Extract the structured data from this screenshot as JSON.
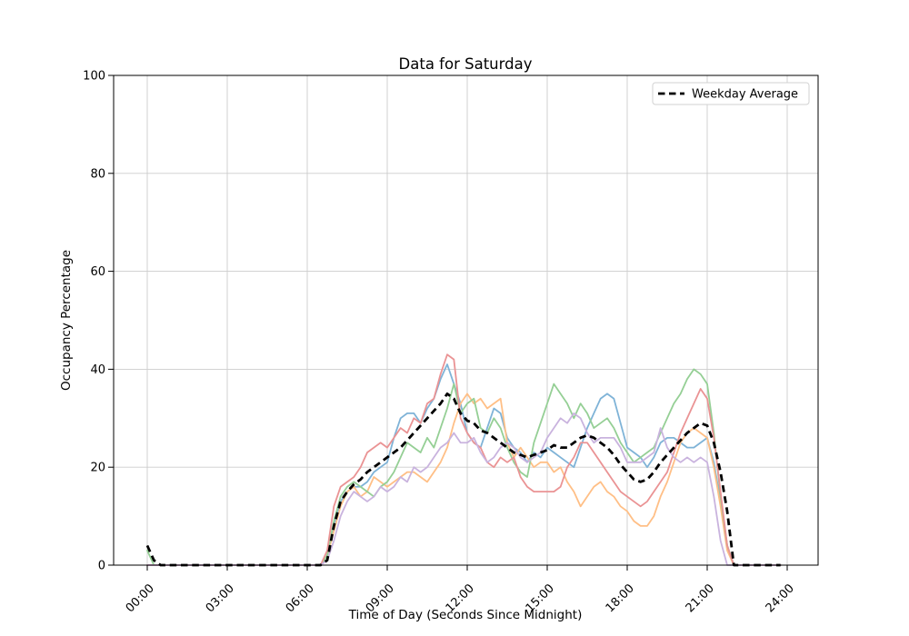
{
  "figure": {
    "background": "#ffffff"
  },
  "chart_data": {
    "type": "line",
    "title": "Data for Saturday",
    "xlabel": "Time of Day (Seconds Since Midnight)",
    "ylabel": "Occupancy Percentage",
    "ylim": [
      0,
      100
    ],
    "xlim_hours": [
      0,
      24
    ],
    "grid": true,
    "legend": {
      "position": "upper right",
      "entries": [
        "Weekday Average"
      ]
    },
    "x_ticks": {
      "hours": [
        0,
        3,
        6,
        9,
        12,
        15,
        18,
        21,
        24
      ],
      "labels": [
        "00:00",
        "03:00",
        "06:00",
        "09:00",
        "12:00",
        "15:00",
        "18:00",
        "21:00",
        "24:00"
      ],
      "rotation_deg": 45
    },
    "y_ticks": [
      0,
      20,
      40,
      60,
      80,
      100
    ],
    "x_start_hour": 0,
    "x_step_hours": 0.25,
    "series": [
      {
        "name": "series-1",
        "color": "#7fb3d7",
        "values": [
          0,
          0,
          0,
          0,
          0,
          0,
          0,
          0,
          0,
          0,
          0,
          0,
          0,
          0,
          0,
          0,
          0,
          0,
          0,
          0,
          0,
          0,
          0,
          0,
          0,
          0,
          0,
          2,
          8,
          13,
          15,
          16,
          16,
          17,
          19,
          20,
          21,
          26,
          30,
          31,
          31,
          29,
          32,
          34,
          38,
          41,
          37,
          33,
          27,
          25,
          24,
          28,
          32,
          31,
          26,
          24,
          23,
          21,
          23,
          22,
          24,
          23,
          22,
          21,
          20,
          24,
          28,
          31,
          34,
          35,
          34,
          29,
          24,
          23,
          22,
          20,
          22,
          25,
          26,
          26,
          25,
          24,
          24,
          25,
          26,
          21,
          13,
          4,
          0,
          0,
          0,
          0,
          0,
          0,
          0,
          0
        ]
      },
      {
        "name": "series-2",
        "color": "#ffbf86",
        "values": [
          0,
          0,
          0,
          0,
          0,
          0,
          0,
          0,
          0,
          0,
          0,
          0,
          0,
          0,
          0,
          0,
          0,
          0,
          0,
          0,
          0,
          0,
          0,
          0,
          0,
          0,
          0,
          2,
          7,
          12,
          15,
          16,
          14,
          15,
          18,
          17,
          16,
          17,
          18,
          19,
          19,
          18,
          17,
          19,
          21,
          24,
          29,
          33,
          35,
          33,
          34,
          32,
          33,
          34,
          25,
          22,
          24,
          22,
          20,
          21,
          21,
          19,
          20,
          17,
          15,
          12,
          14,
          16,
          17,
          15,
          14,
          12,
          11,
          9,
          8,
          8,
          10,
          14,
          17,
          21,
          25,
          27,
          28,
          27,
          26,
          20,
          12,
          3,
          0,
          0,
          0,
          0,
          0,
          0,
          0,
          0
        ]
      },
      {
        "name": "series-3",
        "color": "#95cf95",
        "values": [
          3,
          0,
          0,
          0,
          0,
          0,
          0,
          0,
          0,
          0,
          0,
          0,
          0,
          0,
          0,
          0,
          0,
          0,
          0,
          0,
          0,
          0,
          0,
          0,
          0,
          0,
          0,
          2,
          9,
          14,
          16,
          17,
          16,
          15,
          14,
          16,
          17,
          19,
          22,
          25,
          24,
          23,
          26,
          24,
          28,
          32,
          37,
          31,
          33,
          34,
          28,
          27,
          30,
          28,
          24,
          21,
          19,
          18,
          25,
          29,
          33,
          37,
          35,
          33,
          30,
          33,
          31,
          28,
          29,
          30,
          28,
          25,
          23,
          21,
          22,
          23,
          24,
          27,
          30,
          33,
          35,
          38,
          40,
          39,
          37,
          27,
          14,
          4,
          0,
          0,
          0,
          0,
          0,
          0,
          0,
          0
        ]
      },
      {
        "name": "series-4",
        "color": "#ea9394",
        "values": [
          0,
          0,
          0,
          0,
          0,
          0,
          0,
          0,
          0,
          0,
          0,
          0,
          0,
          0,
          0,
          0,
          0,
          0,
          0,
          0,
          0,
          0,
          0,
          0,
          0,
          0,
          0,
          3,
          12,
          16,
          17,
          18,
          20,
          23,
          24,
          25,
          24,
          26,
          28,
          27,
          30,
          29,
          33,
          34,
          39,
          43,
          42,
          30,
          27,
          25,
          24,
          21,
          20,
          22,
          21,
          22,
          18,
          16,
          15,
          15,
          15,
          15,
          16,
          20,
          22,
          25,
          25,
          23,
          21,
          19,
          17,
          15,
          14,
          13,
          12,
          13,
          15,
          17,
          19,
          23,
          27,
          30,
          33,
          36,
          34,
          26,
          15,
          4,
          0,
          0,
          0,
          0,
          0,
          0,
          0,
          0
        ]
      },
      {
        "name": "series-5",
        "color": "#c9b3de",
        "values": [
          0,
          0,
          0,
          0,
          0,
          0,
          0,
          0,
          0,
          0,
          0,
          0,
          0,
          0,
          0,
          0,
          0,
          0,
          0,
          0,
          0,
          0,
          0,
          0,
          0,
          0,
          0,
          1,
          5,
          10,
          13,
          15,
          14,
          13,
          14,
          16,
          15,
          16,
          18,
          17,
          20,
          19,
          20,
          22,
          24,
          25,
          27,
          25,
          25,
          26,
          23,
          21,
          22,
          24,
          25,
          24,
          22,
          21,
          22,
          23,
          26,
          28,
          30,
          29,
          31,
          30,
          27,
          25,
          26,
          26,
          26,
          24,
          21,
          21,
          21,
          22,
          23,
          28,
          24,
          22,
          21,
          22,
          21,
          22,
          21,
          14,
          5,
          0,
          0,
          0,
          0,
          0,
          0,
          0,
          0,
          0
        ]
      }
    ],
    "average_series": {
      "name": "Weekday Average",
      "color": "#000000",
      "dashed": true,
      "values": [
        4,
        1,
        0,
        0,
        0,
        0,
        0,
        0,
        0,
        0,
        0,
        0,
        0,
        0,
        0,
        0,
        0,
        0,
        0,
        0,
        0,
        0,
        0,
        0,
        0,
        0,
        0,
        1,
        8,
        13,
        15,
        16.5,
        17.5,
        19,
        20,
        21,
        22,
        23,
        24,
        25.5,
        27,
        28.5,
        30,
        31.5,
        33,
        35,
        34,
        31,
        29.5,
        29,
        27.5,
        27,
        26,
        25,
        24,
        23,
        22.5,
        22,
        22.5,
        23,
        23.5,
        24.5,
        24,
        24,
        25,
        26,
        26.5,
        26,
        25,
        24,
        22.5,
        20.5,
        19,
        17.5,
        17,
        17.5,
        19,
        21,
        22.5,
        24,
        25.5,
        27,
        28,
        29,
        28.5,
        25,
        19,
        11,
        0,
        0,
        0,
        0,
        0,
        0,
        0,
        0
      ]
    }
  }
}
